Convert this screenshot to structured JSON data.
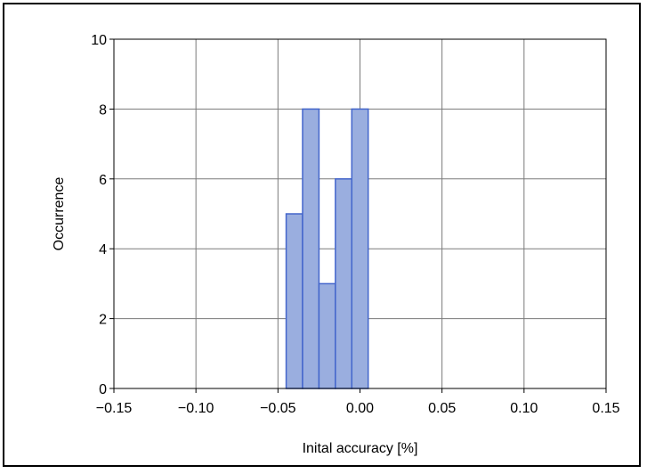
{
  "chart_data": {
    "type": "bar",
    "title": "",
    "xlabel": "Inital accuracy [%]",
    "ylabel": "Occurrence",
    "xlim": [
      -0.15,
      0.15
    ],
    "ylim": [
      0,
      10
    ],
    "xticks": [
      "−0.15",
      "−0.10",
      "−0.05",
      "0.00",
      "0.05",
      "0.10",
      "0.15"
    ],
    "yticks": [
      "0",
      "2",
      "4",
      "6",
      "8",
      "10"
    ],
    "grid": true,
    "bar_color": "#9aaedf",
    "bar_edge_color": "#4466cc",
    "bins": [
      {
        "x0": -0.045,
        "x1": -0.035,
        "value": 5
      },
      {
        "x0": -0.035,
        "x1": -0.025,
        "value": 8
      },
      {
        "x0": -0.025,
        "x1": -0.015,
        "value": 3
      },
      {
        "x0": -0.015,
        "x1": -0.005,
        "value": 6
      },
      {
        "x0": -0.005,
        "x1": 0.005,
        "value": 8
      }
    ]
  }
}
